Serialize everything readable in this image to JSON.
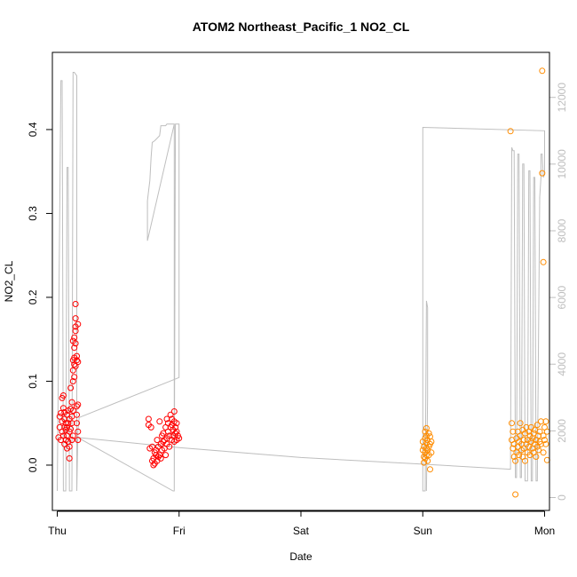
{
  "chart_data": {
    "type": "scatter",
    "title": "ATOM2 Northeast_Pacific_1 NO2_CL",
    "xlabel": "Date",
    "ylabel": "NO2_CL",
    "x_ticks": [
      "Thu",
      "Fri",
      "Sat",
      "Sun",
      "Mon"
    ],
    "x_range_days": [
      -0.04,
      4.04
    ],
    "ylim": [
      -0.054,
      0.492
    ],
    "y_ticks": [
      "0.0",
      "0.1",
      "0.2",
      "0.3",
      "0.4"
    ],
    "y2_ticks": [
      "0",
      "2000",
      "4000",
      "6000",
      "8000",
      "10000",
      "12000"
    ],
    "y2lim": [
      -386,
      13350
    ],
    "colors": {
      "red": "#ff0000",
      "orange": "#ff8c00",
      "line": "#bebebe"
    },
    "series": [
      {
        "color": "red",
        "points": [
          [
            0.01,
            0.033
          ],
          [
            0.02,
            0.045
          ],
          [
            0.02,
            0.058
          ],
          [
            0.03,
            0.062
          ],
          [
            0.03,
            0.03
          ],
          [
            0.04,
            0.04
          ],
          [
            0.04,
            0.052
          ],
          [
            0.04,
            0.08
          ],
          [
            0.05,
            0.083
          ],
          [
            0.05,
            0.068
          ],
          [
            0.05,
            0.035
          ],
          [
            0.06,
            0.045
          ],
          [
            0.06,
            0.055
          ],
          [
            0.06,
            0.063
          ],
          [
            0.06,
            0.025
          ],
          [
            0.07,
            0.03
          ],
          [
            0.07,
            0.042
          ],
          [
            0.07,
            0.05
          ],
          [
            0.08,
            0.06
          ],
          [
            0.08,
            0.035
          ],
          [
            0.08,
            0.02
          ],
          [
            0.08,
            0.045
          ],
          [
            0.09,
            0.065
          ],
          [
            0.09,
            0.028
          ],
          [
            0.09,
            0.05
          ],
          [
            0.1,
            0.04
          ],
          [
            0.1,
            0.055
          ],
          [
            0.1,
            0.008
          ],
          [
            0.1,
            0.022
          ],
          [
            0.11,
            0.092
          ],
          [
            0.11,
            0.067
          ],
          [
            0.11,
            0.043
          ],
          [
            0.12,
            0.075
          ],
          [
            0.12,
            0.03
          ],
          [
            0.12,
            0.05
          ],
          [
            0.12,
            0.058
          ],
          [
            0.13,
            0.035
          ],
          [
            0.13,
            0.065
          ],
          [
            0.13,
            0.1
          ],
          [
            0.13,
            0.113
          ],
          [
            0.13,
            0.125
          ],
          [
            0.13,
            0.148
          ],
          [
            0.14,
            0.12
          ],
          [
            0.14,
            0.105
          ],
          [
            0.14,
            0.14
          ],
          [
            0.14,
            0.152
          ],
          [
            0.14,
            0.128
          ],
          [
            0.15,
            0.16
          ],
          [
            0.15,
            0.175
          ],
          [
            0.15,
            0.165
          ],
          [
            0.15,
            0.145
          ],
          [
            0.15,
            0.118
          ],
          [
            0.15,
            0.192
          ],
          [
            0.16,
            0.125
          ],
          [
            0.16,
            0.13
          ],
          [
            0.16,
            0.07
          ],
          [
            0.16,
            0.06
          ],
          [
            0.16,
            0.05
          ],
          [
            0.17,
            0.168
          ],
          [
            0.17,
            0.123
          ],
          [
            0.17,
            0.072
          ],
          [
            0.17,
            0.04
          ],
          [
            0.17,
            0.03
          ],
          [
            0.75,
            0.055
          ],
          [
            0.75,
            0.048
          ],
          [
            0.76,
            0.02
          ],
          [
            0.77,
            0.045
          ],
          [
            0.78,
            0.022
          ],
          [
            0.78,
            0.005
          ],
          [
            0.79,
            0.0
          ],
          [
            0.79,
            0.008
          ],
          [
            0.8,
            0.015
          ],
          [
            0.8,
            0.002
          ],
          [
            0.81,
            0.012
          ],
          [
            0.81,
            0.018
          ],
          [
            0.82,
            0.005
          ],
          [
            0.82,
            0.03
          ],
          [
            0.83,
            0.01
          ],
          [
            0.83,
            0.022
          ],
          [
            0.84,
            0.052
          ],
          [
            0.84,
            0.012
          ],
          [
            0.85,
            0.008
          ],
          [
            0.85,
            0.025
          ],
          [
            0.86,
            0.035
          ],
          [
            0.86,
            0.018
          ],
          [
            0.87,
            0.028
          ],
          [
            0.87,
            0.038
          ],
          [
            0.88,
            0.02
          ],
          [
            0.88,
            0.03
          ],
          [
            0.89,
            0.012
          ],
          [
            0.89,
            0.045
          ],
          [
            0.9,
            0.055
          ],
          [
            0.9,
            0.032
          ],
          [
            0.9,
            0.025
          ],
          [
            0.91,
            0.04
          ],
          [
            0.91,
            0.05
          ],
          [
            0.92,
            0.022
          ],
          [
            0.92,
            0.035
          ],
          [
            0.93,
            0.045
          ],
          [
            0.93,
            0.06
          ],
          [
            0.94,
            0.03
          ],
          [
            0.94,
            0.048
          ],
          [
            0.94,
            0.055
          ],
          [
            0.95,
            0.035
          ],
          [
            0.95,
            0.042
          ],
          [
            0.96,
            0.028
          ],
          [
            0.96,
            0.052
          ],
          [
            0.96,
            0.064
          ],
          [
            0.97,
            0.038
          ],
          [
            0.97,
            0.045
          ],
          [
            0.98,
            0.03
          ],
          [
            0.98,
            0.04
          ],
          [
            0.98,
            0.05
          ],
          [
            0.99,
            0.035
          ],
          [
            1.0,
            0.032
          ]
        ]
      },
      {
        "color": "orange",
        "points": [
          [
            3.0,
            0.028
          ],
          [
            3.0,
            0.018
          ],
          [
            3.01,
            0.01
          ],
          [
            3.01,
            0.003
          ],
          [
            3.01,
            0.022
          ],
          [
            3.02,
            0.032
          ],
          [
            3.02,
            0.008
          ],
          [
            3.02,
            0.015
          ],
          [
            3.02,
            0.04
          ],
          [
            3.03,
            0.02
          ],
          [
            3.03,
            0.012
          ],
          [
            3.03,
            0.026
          ],
          [
            3.03,
            0.035
          ],
          [
            3.03,
            0.044
          ],
          [
            3.04,
            0.005
          ],
          [
            3.04,
            0.018
          ],
          [
            3.04,
            0.03
          ],
          [
            3.05,
            0.022
          ],
          [
            3.05,
            0.038
          ],
          [
            3.05,
            0.012
          ],
          [
            3.06,
            0.025
          ],
          [
            3.06,
            0.034
          ],
          [
            3.06,
            -0.005
          ],
          [
            3.07,
            0.015
          ],
          [
            3.07,
            0.028
          ],
          [
            3.72,
            0.398
          ],
          [
            3.73,
            0.05
          ],
          [
            3.73,
            0.03
          ],
          [
            3.74,
            0.02
          ],
          [
            3.74,
            0.04
          ],
          [
            3.75,
            0.01
          ],
          [
            3.75,
            0.025
          ],
          [
            3.76,
            -0.035
          ],
          [
            3.76,
            0.005
          ],
          [
            3.77,
            0.015
          ],
          [
            3.77,
            0.032
          ],
          [
            3.78,
            0.022
          ],
          [
            3.78,
            0.04
          ],
          [
            3.79,
            0.012
          ],
          [
            3.79,
            0.028
          ],
          [
            3.8,
            0.035
          ],
          [
            3.8,
            0.05
          ],
          [
            3.81,
            0.018
          ],
          [
            3.81,
            0.025
          ],
          [
            3.82,
            0.01
          ],
          [
            3.82,
            0.042
          ],
          [
            3.83,
            0.03
          ],
          [
            3.83,
            0.02
          ],
          [
            3.84,
            0.005
          ],
          [
            3.84,
            0.038
          ],
          [
            3.85,
            0.045
          ],
          [
            3.85,
            0.025
          ],
          [
            3.86,
            0.015
          ],
          [
            3.86,
            0.03
          ],
          [
            3.87,
            0.04
          ],
          [
            3.87,
            0.022
          ],
          [
            3.88,
            0.012
          ],
          [
            3.88,
            0.035
          ],
          [
            3.89,
            0.028
          ],
          [
            3.89,
            0.045
          ],
          [
            3.9,
            0.02
          ],
          [
            3.9,
            0.032
          ],
          [
            3.91,
            0.038
          ],
          [
            3.91,
            0.015
          ],
          [
            3.92,
            0.025
          ],
          [
            3.92,
            0.042
          ],
          [
            3.93,
            0.01
          ],
          [
            3.93,
            0.03
          ],
          [
            3.94,
            0.022
          ],
          [
            3.94,
            0.048
          ],
          [
            3.95,
            0.035
          ],
          [
            3.95,
            0.018
          ],
          [
            3.96,
            0.028
          ],
          [
            3.96,
            0.04
          ],
          [
            3.97,
            0.052
          ],
          [
            3.97,
            0.025
          ],
          [
            3.98,
            0.47
          ],
          [
            3.98,
            0.348
          ],
          [
            3.99,
            0.242
          ],
          [
            3.99,
            0.035
          ],
          [
            3.99,
            0.015
          ],
          [
            4.0,
            0.045
          ],
          [
            4.0,
            0.03
          ],
          [
            4.01,
            0.052
          ],
          [
            4.01,
            0.025
          ],
          [
            4.02,
            0.006
          ],
          [
            4.02,
            0.04
          ]
        ]
      }
    ],
    "line_series": {
      "axis": "right",
      "points": [
        [
          0.0,
          200
        ],
        [
          0.03,
          12500
        ],
        [
          0.04,
          12500
        ],
        [
          0.05,
          200
        ],
        [
          0.07,
          200
        ],
        [
          0.08,
          9900
        ],
        [
          0.09,
          9900
        ],
        [
          0.1,
          200
        ],
        [
          0.12,
          200
        ],
        [
          0.13,
          12750
        ],
        [
          0.14,
          12750
        ],
        [
          0.15,
          12700
        ],
        [
          0.16,
          12650
        ],
        [
          0.16,
          200
        ],
        [
          0.17,
          2000
        ],
        [
          0.18,
          2400
        ],
        [
          1.0,
          3600
        ],
        [
          1.0,
          11200
        ],
        [
          0.97,
          11200
        ],
        [
          0.96,
          200
        ],
        [
          0.96,
          11200
        ],
        [
          0.94,
          11200
        ],
        [
          0.9,
          11200
        ],
        [
          0.89,
          11150
        ],
        [
          0.85,
          11150
        ],
        [
          0.84,
          10850
        ],
        [
          0.8,
          10700
        ],
        [
          0.78,
          10650
        ],
        [
          0.77,
          10200
        ],
        [
          0.76,
          9500
        ],
        [
          0.75,
          9200
        ],
        [
          0.74,
          8900
        ],
        [
          0.74,
          8600
        ],
        [
          0.74,
          8100
        ],
        [
          0.74,
          7700
        ],
        [
          0.96,
          11200
        ],
        [
          0.96,
          200
        ],
        [
          0.95,
          200
        ],
        [
          0.17,
          1800
        ],
        [
          1.0,
          1500
        ],
        [
          2.0,
          1200
        ],
        [
          3.0,
          1000
        ],
        [
          3.72,
          850
        ],
        [
          3.73,
          10500
        ],
        [
          3.74,
          10400
        ],
        [
          3.75,
          10400
        ],
        [
          3.76,
          600
        ],
        [
          3.77,
          600
        ],
        [
          3.78,
          10300
        ],
        [
          3.79,
          10300
        ],
        [
          3.8,
          600
        ],
        [
          3.81,
          600
        ],
        [
          3.82,
          10000
        ],
        [
          3.83,
          10000
        ],
        [
          3.84,
          500
        ],
        [
          3.86,
          500
        ],
        [
          3.87,
          9800
        ],
        [
          3.88,
          9800
        ],
        [
          3.89,
          500
        ],
        [
          3.9,
          500
        ],
        [
          3.91,
          9600
        ],
        [
          3.92,
          9600
        ],
        [
          3.93,
          500
        ],
        [
          3.94,
          500
        ],
        [
          3.96,
          9000
        ],
        [
          3.97,
          9600
        ],
        [
          3.97,
          10300
        ],
        [
          3.98,
          10300
        ],
        [
          3.99,
          9600
        ],
        [
          4.0,
          9700
        ],
        [
          4.0,
          11000
        ],
        [
          3.0,
          11100
        ],
        [
          3.0,
          11100
        ],
        [
          3.0,
          200
        ],
        [
          3.02,
          200
        ],
        [
          3.03,
          5900
        ],
        [
          3.04,
          5700
        ],
        [
          3.04,
          3000
        ],
        [
          3.03,
          200
        ],
        [
          3.03,
          200
        ]
      ]
    }
  }
}
